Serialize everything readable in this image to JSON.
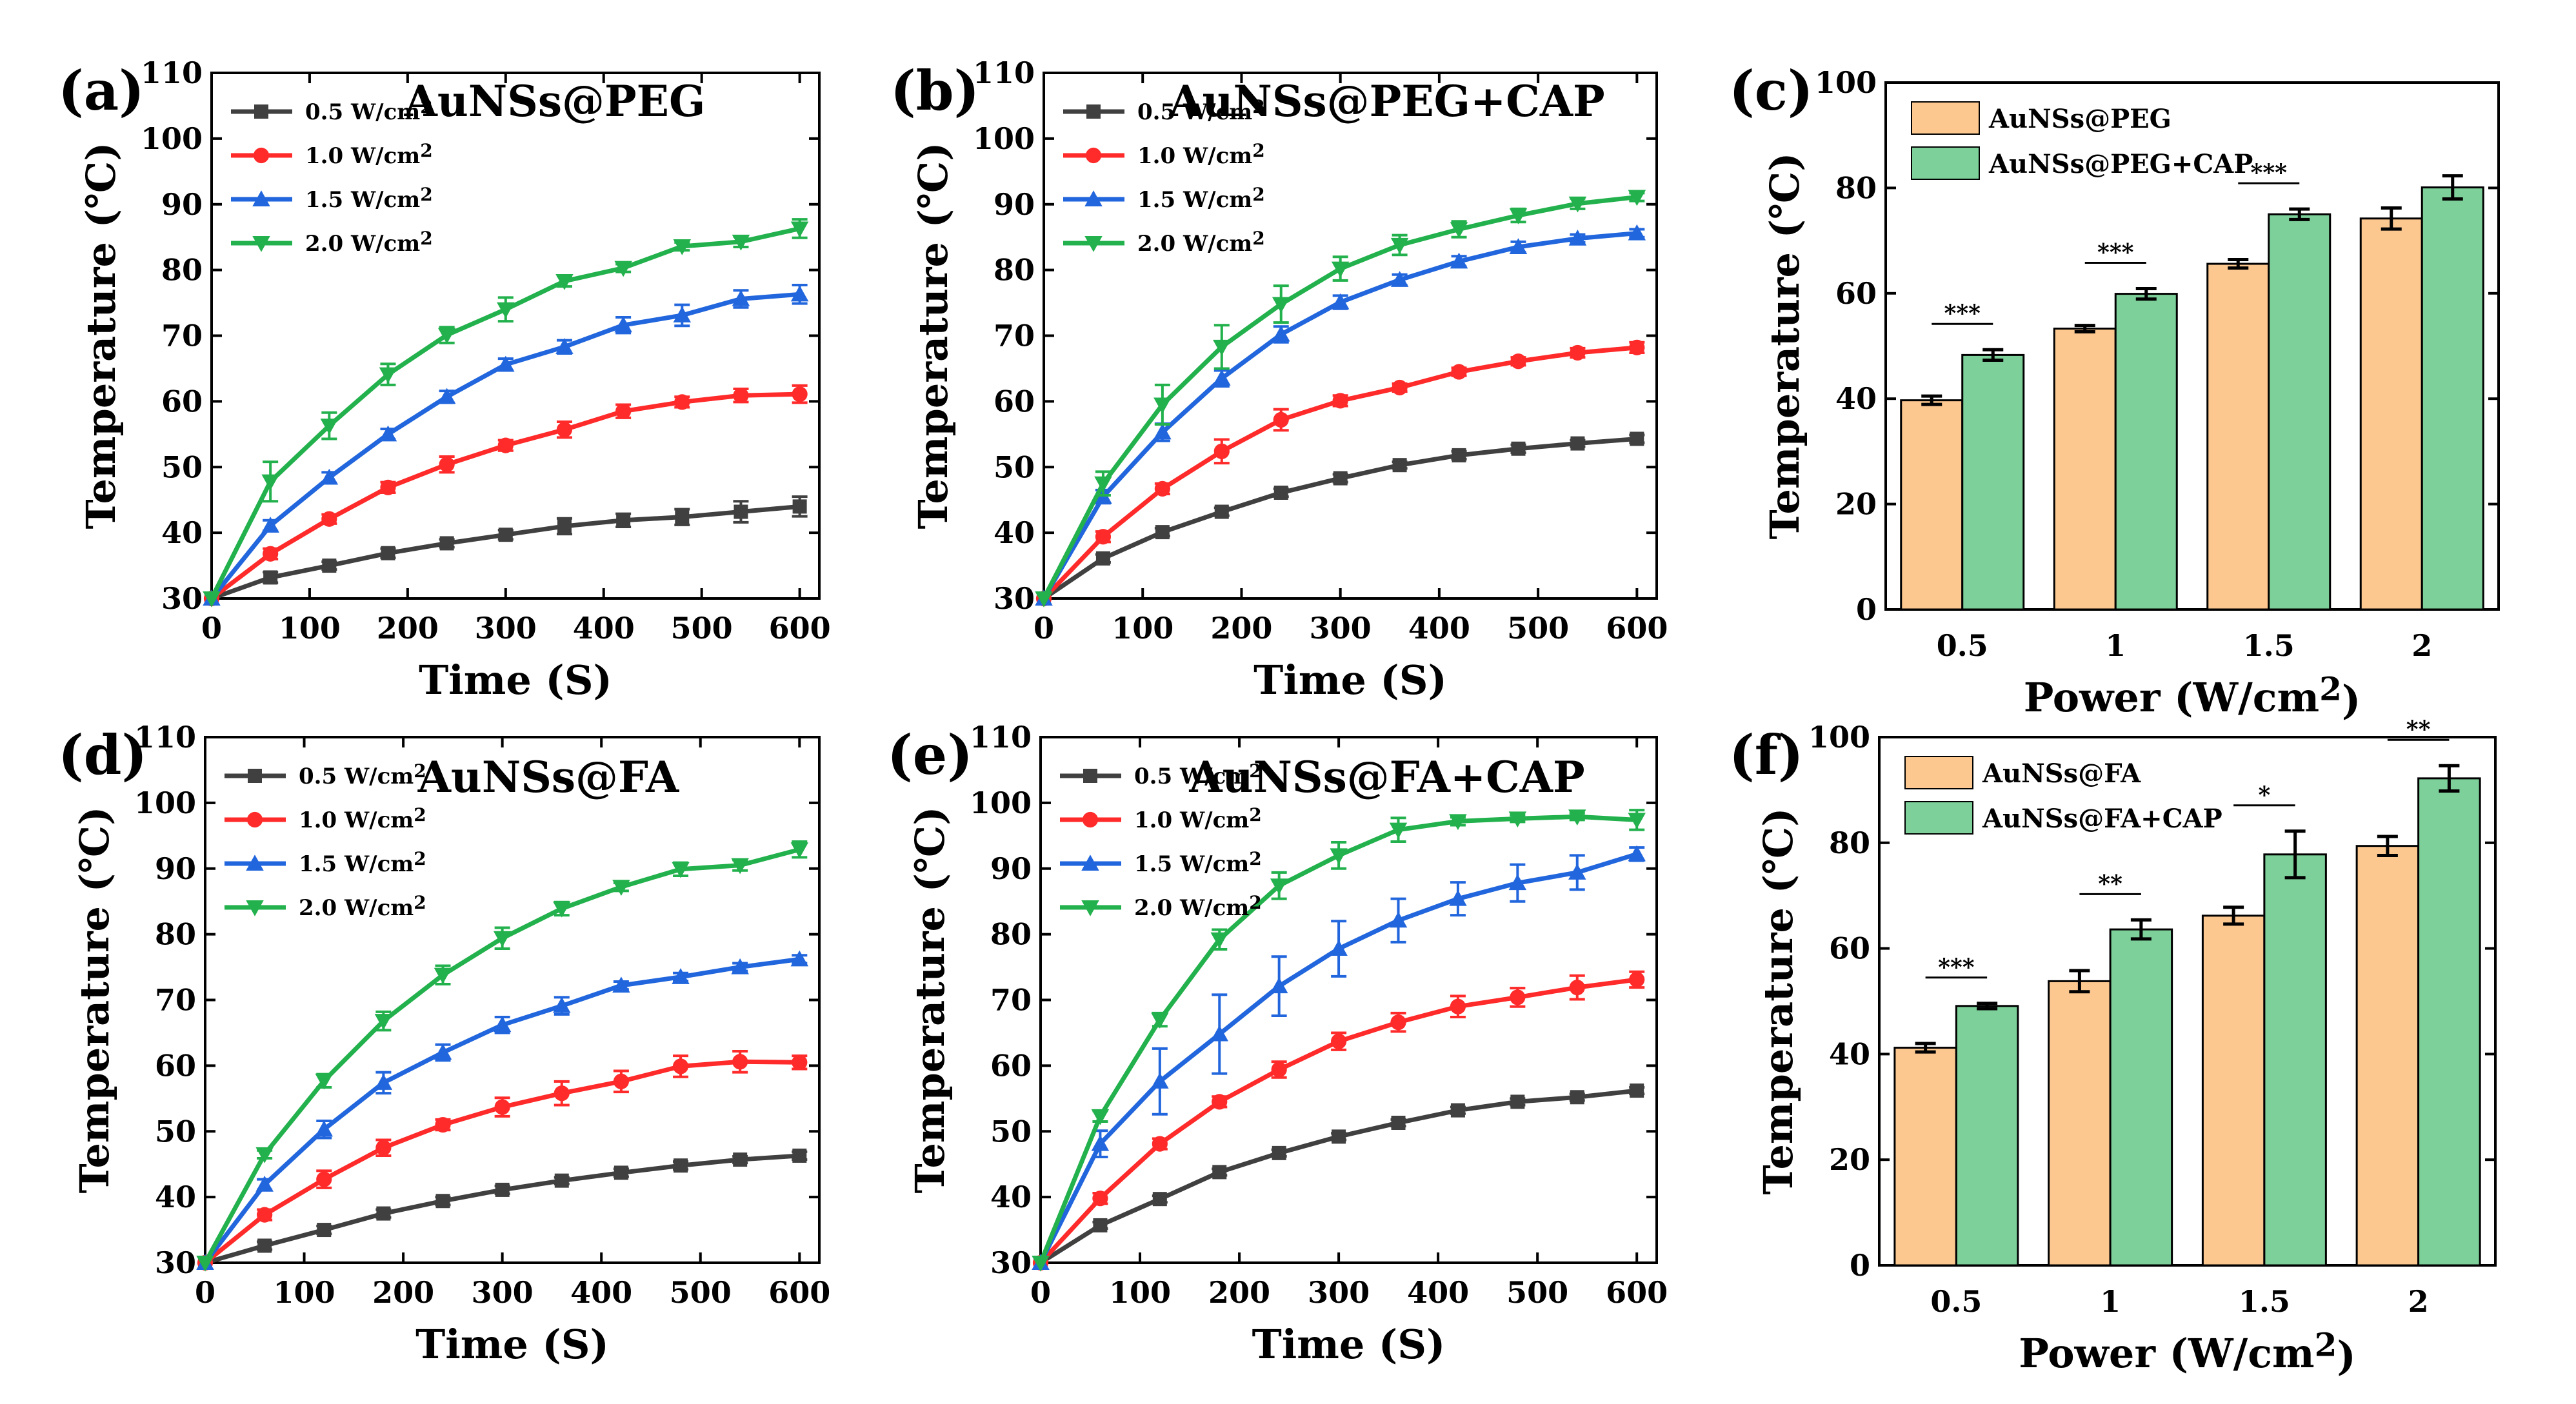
{
  "figure": {
    "panels": [
      {
        "letter": "(a)",
        "title": "AuNSs@PEG"
      },
      {
        "letter": "(b)",
        "title": "AuNSs@PEG+CAP"
      },
      {
        "letter": "(c)",
        "title": ""
      },
      {
        "letter": "(d)",
        "title": "AuNSs@FA"
      },
      {
        "letter": "(e)",
        "title": "AuNSs@FA+CAP"
      },
      {
        "letter": "(f)",
        "title": ""
      }
    ]
  },
  "chart_data": [
    {
      "type": "line",
      "panel": "(a)",
      "title": "AuNSs@PEG",
      "xlabel": "Time (S)",
      "ylabel": "Temperature (℃)",
      "xlim": [
        0,
        620
      ],
      "ylim": [
        30,
        110
      ],
      "xticks": [
        0,
        100,
        200,
        300,
        400,
        500,
        600
      ],
      "yticks": [
        30,
        40,
        50,
        60,
        70,
        80,
        90,
        100,
        110
      ],
      "x": [
        0,
        60,
        120,
        180,
        240,
        300,
        360,
        420,
        480,
        540,
        600
      ],
      "series": [
        {
          "name": "0.5 W/cm²",
          "color": "#404040",
          "marker": "square",
          "values": [
            30,
            33.2,
            35,
            36.9,
            38.4,
            39.7,
            41,
            41.9,
            42.4,
            43.2,
            44
          ],
          "errors": [
            0.3,
            0.8,
            0.6,
            0.7,
            0.6,
            0.7,
            1.2,
            1.0,
            1.2,
            1.6,
            1.5
          ]
        },
        {
          "name": "1.0 W/cm²",
          "color": "#ff2a2a",
          "marker": "circle",
          "values": [
            30,
            36.8,
            42.1,
            46.9,
            50.4,
            53.3,
            55.7,
            58.5,
            59.9,
            60.9,
            61.1
          ],
          "errors": [
            0.3,
            0.8,
            0.7,
            0.8,
            1.2,
            0.8,
            1.2,
            1.0,
            0.8,
            1.0,
            1.3
          ]
        },
        {
          "name": "1.5 W/cm²",
          "color": "#2266dd",
          "marker": "triangle-up",
          "values": [
            30,
            41.1,
            48.4,
            55,
            60.7,
            65.6,
            68.3,
            71.6,
            73.1,
            75.6,
            76.3
          ],
          "errors": [
            0.3,
            0.8,
            0.8,
            0.8,
            0.9,
            0.9,
            1.0,
            1.2,
            1.6,
            1.3,
            1.4
          ]
        },
        {
          "name": "2.0 W/cm²",
          "color": "#22b14c",
          "marker": "triangle-down",
          "values": [
            30,
            47.8,
            56.3,
            64.1,
            70.1,
            74,
            78.3,
            80.3,
            83.6,
            84.3,
            86.3
          ],
          "errors": [
            0.3,
            3.0,
            2.0,
            1.6,
            1.2,
            1.8,
            0.8,
            0.6,
            0.6,
            0.8,
            1.4
          ]
        }
      ]
    },
    {
      "type": "line",
      "panel": "(b)",
      "title": "AuNSs@PEG+CAP",
      "xlabel": "Time (S)",
      "ylabel": "Temperature (℃)",
      "xlim": [
        0,
        620
      ],
      "ylim": [
        30,
        110
      ],
      "xticks": [
        0,
        100,
        200,
        300,
        400,
        500,
        600
      ],
      "yticks": [
        30,
        40,
        50,
        60,
        70,
        80,
        90,
        100,
        110
      ],
      "x": [
        0,
        60,
        120,
        180,
        240,
        300,
        360,
        420,
        480,
        540,
        600
      ],
      "series": [
        {
          "name": "0.5 W/cm²",
          "color": "#404040",
          "marker": "square",
          "values": [
            30,
            36.1,
            40.1,
            43.2,
            46.1,
            48.3,
            50.3,
            51.8,
            52.8,
            53.6,
            54.3
          ],
          "errors": [
            0.3,
            0.6,
            0.6,
            0.6,
            0.6,
            0.6,
            0.5,
            0.6,
            0.6,
            0.5,
            0.6
          ]
        },
        {
          "name": "1.0 W/cm²",
          "color": "#ff2a2a",
          "marker": "circle",
          "values": [
            30,
            39.4,
            46.7,
            52.4,
            57.2,
            60.1,
            62.1,
            64.5,
            66.1,
            67.4,
            68.2
          ],
          "errors": [
            0.3,
            0.8,
            0.8,
            1.8,
            1.6,
            0.8,
            0.6,
            0.6,
            0.6,
            0.7,
            0.8
          ]
        },
        {
          "name": "1.5 W/cm²",
          "color": "#2266dd",
          "marker": "triangle-up",
          "values": [
            30,
            45.5,
            55.3,
            63.5,
            70.2,
            75.1,
            78.5,
            81.3,
            83.5,
            84.8,
            85.6
          ],
          "errors": [
            0.3,
            1.0,
            1.3,
            1.2,
            1.2,
            1.0,
            0.8,
            0.8,
            0.8,
            0.6,
            0.6
          ]
        },
        {
          "name": "2.0 W/cm²",
          "color": "#22b14c",
          "marker": "triangle-down",
          "values": [
            30,
            47.5,
            59.5,
            68.3,
            74.8,
            80.2,
            83.8,
            86.2,
            88.3,
            90.1,
            91.1
          ],
          "errors": [
            0.3,
            1.8,
            3.0,
            3.3,
            2.8,
            1.8,
            1.5,
            1.2,
            1.0,
            0.8,
            0.6
          ]
        }
      ]
    },
    {
      "type": "bar",
      "panel": "(c)",
      "xlabel": "Power (W/cm²)",
      "ylabel": "Temperature (℃)",
      "ylim": [
        0,
        100
      ],
      "yticks": [
        0,
        20,
        40,
        60,
        80,
        100
      ],
      "categories": [
        "0.5",
        "1",
        "1.5",
        "2"
      ],
      "series": [
        {
          "name": "AuNSs@PEG",
          "color": "#fdc890",
          "values": [
            39.7,
            53.3,
            65.6,
            74.2
          ],
          "errors": [
            0.8,
            0.6,
            0.8,
            2.0
          ]
        },
        {
          "name": "AuNSs@PEG+CAP",
          "color": "#7dd09a",
          "values": [
            48.3,
            59.9,
            75,
            80.1
          ],
          "errors": [
            1.0,
            1.0,
            1.0,
            2.2
          ]
        }
      ],
      "significance": [
        "***",
        "***",
        "***",
        ""
      ]
    },
    {
      "type": "line",
      "panel": "(d)",
      "title": "AuNSs@FA",
      "xlabel": "Time (S)",
      "ylabel": "Temperature (℃)",
      "xlim": [
        0,
        620
      ],
      "ylim": [
        30,
        110
      ],
      "xticks": [
        0,
        100,
        200,
        300,
        400,
        500,
        600
      ],
      "yticks": [
        30,
        40,
        50,
        60,
        70,
        80,
        90,
        100,
        110
      ],
      "x": [
        0,
        60,
        120,
        180,
        240,
        300,
        360,
        420,
        480,
        540,
        600
      ],
      "series": [
        {
          "name": "0.5 W/cm²",
          "color": "#404040",
          "marker": "square",
          "values": [
            30,
            32.6,
            35,
            37.5,
            39.4,
            41.1,
            42.5,
            43.7,
            44.8,
            45.7,
            46.3
          ],
          "errors": [
            0.3,
            0.6,
            0.6,
            0.6,
            0.6,
            0.6,
            0.5,
            0.6,
            0.6,
            0.5,
            0.6
          ]
        },
        {
          "name": "1.0 W/cm²",
          "color": "#ff2a2a",
          "marker": "circle",
          "values": [
            30,
            37.3,
            42.7,
            47.5,
            51,
            53.7,
            55.8,
            57.6,
            59.9,
            60.6,
            60.5
          ],
          "errors": [
            0.3,
            0.8,
            1.3,
            1.2,
            0.8,
            1.4,
            1.8,
            1.6,
            1.6,
            1.6,
            1.0
          ]
        },
        {
          "name": "1.5 W/cm²",
          "color": "#2266dd",
          "marker": "triangle-up",
          "values": [
            30,
            41.9,
            50.3,
            57.4,
            62,
            66.2,
            69.1,
            72.2,
            73.5,
            75,
            76.2
          ],
          "errors": [
            0.3,
            0.8,
            1.3,
            1.6,
            1.2,
            1.2,
            1.3,
            0.6,
            0.6,
            0.6,
            0.6
          ]
        },
        {
          "name": "2.0 W/cm²",
          "color": "#22b14c",
          "marker": "triangle-down",
          "values": [
            30,
            46.5,
            57.7,
            66.8,
            73.8,
            79.4,
            83.9,
            87.2,
            89.9,
            90.5,
            92.9
          ],
          "errors": [
            0.3,
            0.6,
            1.0,
            1.4,
            1.4,
            1.6,
            1.0,
            0.6,
            1.0,
            0.8,
            1.2
          ]
        }
      ]
    },
    {
      "type": "line",
      "panel": "(e)",
      "title": "AuNSs@FA+CAP",
      "xlabel": "Time (S)",
      "ylabel": "Temperature (℃)",
      "xlim": [
        0,
        620
      ],
      "ylim": [
        30,
        110
      ],
      "xticks": [
        0,
        100,
        200,
        300,
        400,
        500,
        600
      ],
      "yticks": [
        30,
        40,
        50,
        60,
        70,
        80,
        90,
        100,
        110
      ],
      "x": [
        0,
        60,
        120,
        180,
        240,
        300,
        360,
        420,
        480,
        540,
        600
      ],
      "series": [
        {
          "name": "0.5 W/cm²",
          "color": "#404040",
          "marker": "square",
          "values": [
            30,
            35.7,
            39.7,
            43.8,
            46.7,
            49.2,
            51.3,
            53.2,
            54.5,
            55.2,
            56.2
          ],
          "errors": [
            0.3,
            0.5,
            0.5,
            0.5,
            0.5,
            0.5,
            0.5,
            0.5,
            0.5,
            0.5,
            0.5
          ]
        },
        {
          "name": "1.0 W/cm²",
          "color": "#ff2a2a",
          "marker": "circle",
          "values": [
            30,
            39.8,
            48.1,
            54.5,
            59.4,
            63.7,
            66.6,
            69,
            70.4,
            71.9,
            73.1
          ],
          "errors": [
            0.3,
            0.8,
            0.8,
            0.8,
            1.2,
            1.3,
            1.4,
            1.6,
            1.4,
            1.8,
            1.2
          ]
        },
        {
          "name": "1.5 W/cm²",
          "color": "#2266dd",
          "marker": "triangle-up",
          "values": [
            30,
            48.1,
            57.6,
            64.8,
            72.1,
            77.8,
            82.1,
            85.4,
            87.8,
            89.4,
            92.2
          ],
          "errors": [
            0.3,
            2.0,
            5.0,
            6.0,
            4.5,
            4.2,
            3.3,
            2.5,
            2.8,
            2.6,
            1.0
          ]
        },
        {
          "name": "2.0 W/cm²",
          "color": "#22b14c",
          "marker": "triangle-down",
          "values": [
            30,
            52.3,
            67,
            79.2,
            87.4,
            92,
            95.9,
            97.2,
            97.6,
            97.9,
            97.4
          ],
          "errors": [
            0.3,
            0.8,
            1.0,
            1.5,
            2.0,
            2.0,
            1.8,
            0.6,
            0.5,
            0.5,
            1.5
          ]
        }
      ]
    },
    {
      "type": "bar",
      "panel": "(f)",
      "xlabel": "Power (W/cm²)",
      "ylabel": "Temperature (℃)",
      "ylim": [
        0,
        100
      ],
      "yticks": [
        0,
        20,
        40,
        60,
        80,
        100
      ],
      "categories": [
        "0.5",
        "1",
        "1.5",
        "2"
      ],
      "series": [
        {
          "name": "AuNSs@FA",
          "color": "#fdc890",
          "values": [
            41.2,
            53.8,
            66.2,
            79.4
          ],
          "errors": [
            0.8,
            2.0,
            1.6,
            1.8
          ]
        },
        {
          "name": "AuNSs@FA+CAP",
          "color": "#7dd09a",
          "values": [
            49.1,
            63.6,
            77.8,
            92.2
          ],
          "errors": [
            0.5,
            1.8,
            4.4,
            2.4
          ]
        }
      ],
      "significance": [
        "***",
        "**",
        "*",
        "**"
      ]
    }
  ]
}
